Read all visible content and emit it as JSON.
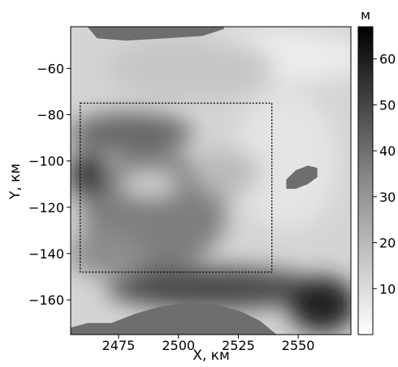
{
  "chart_data": {
    "type": "heatmap",
    "title": "",
    "xlabel": "X, км",
    "ylabel": "Y, км",
    "xlim": [
      2455,
      2572
    ],
    "ylim": [
      -175,
      -42
    ],
    "x_ticks": [
      "2475",
      "2500",
      "2525",
      "2550"
    ],
    "x_tick_values": [
      2475,
      2500,
      2525,
      2550
    ],
    "y_ticks": [
      "−60",
      "−80",
      "−100",
      "−120",
      "−140",
      "−160"
    ],
    "y_tick_values": [
      -60,
      -80,
      -100,
      -120,
      -140,
      -160
    ],
    "colorbar": {
      "label": "м",
      "range": [
        0,
        67
      ],
      "ticks": [
        "10",
        "20",
        "30",
        "40",
        "50",
        "60"
      ],
      "tick_values": [
        10,
        20,
        30,
        40,
        50,
        60
      ],
      "colormap": "Greys"
    },
    "masked_color": "#6e6e6e",
    "annotation_box": {
      "x": [
        2459,
        2539
      ],
      "y": [
        -148,
        -75
      ],
      "style": "dotted"
    },
    "masked_regions": [
      {
        "name": "top",
        "points": [
          [
            2462,
            -42
          ],
          [
            2466,
            -47
          ],
          [
            2478,
            -48
          ],
          [
            2495,
            -47
          ],
          [
            2510,
            -46
          ],
          [
            2519,
            -43
          ],
          [
            2519,
            -42
          ]
        ]
      },
      {
        "name": "bottom",
        "points": [
          [
            2455,
            -172
          ],
          [
            2462,
            -170
          ],
          [
            2472,
            -170
          ],
          [
            2482,
            -166
          ],
          [
            2492,
            -163
          ],
          [
            2504,
            -161
          ],
          [
            2516,
            -162
          ],
          [
            2526,
            -165
          ],
          [
            2534,
            -169
          ],
          [
            2541,
            -175
          ],
          [
            2455,
            -175
          ]
        ]
      },
      {
        "name": "right-island",
        "points": [
          [
            2545,
            -108
          ],
          [
            2549,
            -104
          ],
          [
            2554,
            -102
          ],
          [
            2558,
            -103
          ],
          [
            2558,
            -107
          ],
          [
            2554,
            -110
          ],
          [
            2549,
            -112
          ],
          [
            2545,
            -112
          ]
        ]
      }
    ],
    "field_patches": [
      {
        "center": [
          2535,
          -55
        ],
        "radius": [
          45,
          12
        ],
        "value": 5
      },
      {
        "center": [
          2545,
          -100
        ],
        "radius": [
          22,
          30
        ],
        "value": 7
      },
      {
        "center": [
          2505,
          -60
        ],
        "radius": [
          35,
          14
        ],
        "value": 15
      },
      {
        "center": [
          2480,
          -88
        ],
        "radius": [
          26,
          9
        ],
        "value": 40
      },
      {
        "center": [
          2490,
          -122
        ],
        "radius": [
          30,
          26
        ],
        "value": 34
      },
      {
        "center": [
          2470,
          -140
        ],
        "radius": [
          16,
          10
        ],
        "value": 30
      },
      {
        "center": [
          2515,
          -155
        ],
        "radius": [
          45,
          9
        ],
        "value": 48
      },
      {
        "center": [
          2560,
          -162
        ],
        "radius": [
          14,
          12
        ],
        "value": 58
      },
      {
        "center": [
          2462,
          -106
        ],
        "radius": [
          8,
          10
        ],
        "value": 52
      },
      {
        "center": [
          2520,
          -105
        ],
        "radius": [
          14,
          10
        ],
        "value": 18
      },
      {
        "center": [
          2488,
          -110
        ],
        "radius": [
          12,
          5
        ],
        "value": 10
      }
    ]
  }
}
